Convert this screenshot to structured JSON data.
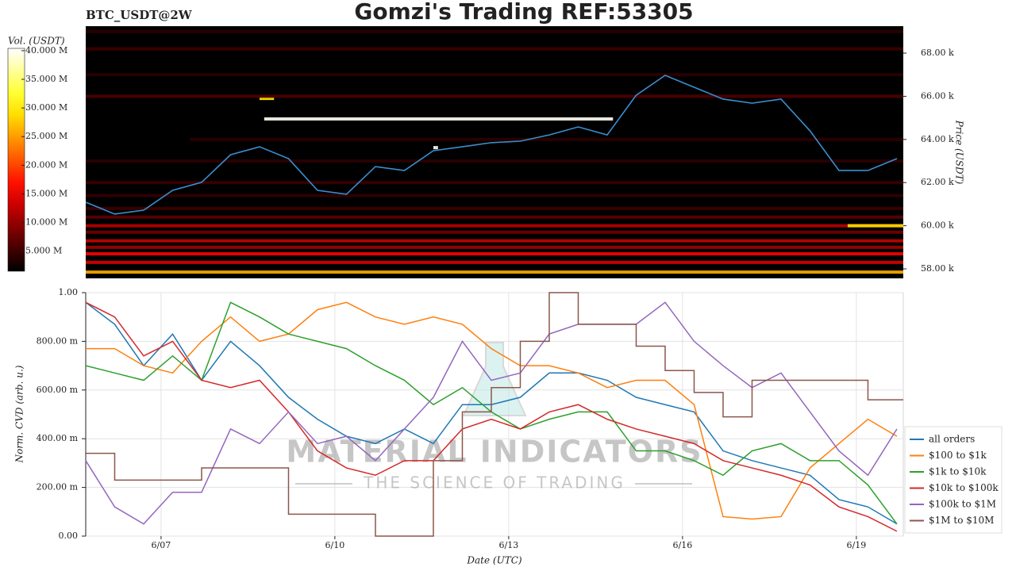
{
  "chart_data": [
    {
      "type": "heatmap",
      "title": "Gomzi's Trading REF:53305",
      "subtitle": "BTC_USDT@2W",
      "ylabel": "Price (USDT)",
      "xlim": [
        5.7,
        19.81
      ],
      "ylim": [
        57560,
        69250
      ],
      "yticks": [
        {
          "value": 58000,
          "label": "58.00 k"
        },
        {
          "value": 60000,
          "label": "60.00 k"
        },
        {
          "value": 62000,
          "label": "62.00 k"
        },
        {
          "value": 64000,
          "label": "64.00 k"
        },
        {
          "value": 66000,
          "label": "66.00 k"
        },
        {
          "value": 68000,
          "label": "68.00 k"
        }
      ],
      "x": [
        5.7,
        6.2,
        6.7,
        7.2,
        7.7,
        8.2,
        8.7,
        9.2,
        9.7,
        10.2,
        10.7,
        11.2,
        11.7,
        12.2,
        12.7,
        13.2,
        13.7,
        14.2,
        14.7,
        15.2,
        15.7,
        16.2,
        16.7,
        17.2,
        17.7,
        18.2,
        18.7,
        19.2,
        19.7
      ],
      "values": [
        61090,
        60540,
        60720,
        61640,
        62010,
        63290,
        63660,
        63110,
        61640,
        61460,
        62740,
        62560,
        63480,
        63660,
        63850,
        63920,
        64210,
        64580,
        64210,
        66050,
        66970,
        66420,
        65870,
        65680,
        65870,
        64400,
        62560,
        62560,
        63110
      ],
      "color": "#3a8fd0",
      "colorbar": {
        "label": "Vol. (USDT)",
        "lim": [
          1500000,
          40400000
        ],
        "ticks": [
          {
            "value": 5000000,
            "label": "5.000 M"
          },
          {
            "value": 10000000,
            "label": "10.000 M"
          },
          {
            "value": 15000000,
            "label": "15.000 M"
          },
          {
            "value": 20000000,
            "label": "20.000 M"
          },
          {
            "value": 25000000,
            "label": "25.000 M"
          },
          {
            "value": 30000000,
            "label": "30.000 M"
          },
          {
            "value": 35000000,
            "label": "35.000 M"
          },
          {
            "value": 40000000,
            "label": "40.000 M"
          }
        ]
      },
      "bands": [
        {
          "price": 57850,
          "volume": 26000000,
          "x": [
            5.7,
            19.81
          ]
        },
        {
          "price": 58300,
          "volume": 14000000,
          "x": [
            5.7,
            19.81
          ]
        },
        {
          "price": 58700,
          "volume": 16000000,
          "x": [
            5.7,
            19.81
          ]
        },
        {
          "price": 59000,
          "volume": 11000000,
          "x": [
            5.7,
            19.81
          ]
        },
        {
          "price": 59300,
          "volume": 13000000,
          "x": [
            5.7,
            19.81
          ]
        },
        {
          "price": 59700,
          "volume": 8000000,
          "x": [
            5.7,
            19.81
          ]
        },
        {
          "price": 60000,
          "volume": 12000000,
          "x": [
            5.7,
            19.81
          ]
        },
        {
          "price": 60000,
          "volume": 29000000,
          "x": [
            18.85,
            19.81
          ]
        },
        {
          "price": 60400,
          "volume": 7000000,
          "x": [
            5.7,
            19.81
          ]
        },
        {
          "price": 60800,
          "volume": 5000000,
          "x": [
            5.7,
            19.81
          ]
        },
        {
          "price": 61400,
          "volume": 4500000,
          "x": [
            5.7,
            19.81
          ]
        },
        {
          "price": 62000,
          "volume": 5000000,
          "x": [
            5.7,
            19.81
          ]
        },
        {
          "price": 63000,
          "volume": 4000000,
          "x": [
            5.7,
            19.81
          ]
        },
        {
          "price": 64000,
          "volume": 4000000,
          "x": [
            7.5,
            19.81
          ]
        },
        {
          "price": 64950,
          "volume": 40000000,
          "x": [
            8.78,
            14.8
          ]
        },
        {
          "price": 65900,
          "volume": 30000000,
          "x": [
            8.7,
            8.95
          ]
        },
        {
          "price": 63620,
          "volume": 40000000,
          "x": [
            11.7,
            11.78
          ]
        },
        {
          "price": 66000,
          "volume": 6000000,
          "x": [
            5.7,
            19.81
          ]
        },
        {
          "price": 67000,
          "volume": 4000000,
          "x": [
            5.7,
            19.81
          ]
        },
        {
          "price": 68200,
          "volume": 5000000,
          "x": [
            5.7,
            19.81
          ]
        },
        {
          "price": 69000,
          "volume": 4000000,
          "x": [
            5.7,
            19.81
          ]
        }
      ]
    },
    {
      "type": "line",
      "xlabel": "Date (UTC)",
      "ylabel": "Norm. CVD (arb. u.)",
      "grid": true,
      "legend": "lower right",
      "watermark": [
        "MATERIAL INDICATORS",
        "THE SCIENCE OF TRADING"
      ],
      "xlim": [
        5.7,
        19.81
      ],
      "xticks": [
        {
          "value": 7,
          "label": "6/07"
        },
        {
          "value": 10,
          "label": "6/10"
        },
        {
          "value": 13,
          "label": "6/13"
        },
        {
          "value": 16,
          "label": "6/16"
        },
        {
          "value": 19,
          "label": "6/19"
        }
      ],
      "ylim": [
        0,
        1
      ],
      "yticks": [
        {
          "value": 0,
          "label": "0.00"
        },
        {
          "value": 0.2,
          "label": "200.00 m"
        },
        {
          "value": 0.4,
          "label": "400.00 m"
        },
        {
          "value": 0.6,
          "label": "600.00 m"
        },
        {
          "value": 0.8,
          "label": "800.00 m"
        },
        {
          "value": 1,
          "label": "1.00"
        }
      ],
      "x": [
        5.7,
        6.2,
        6.7,
        7.2,
        7.7,
        8.2,
        8.7,
        9.2,
        9.7,
        10.2,
        10.7,
        11.2,
        11.7,
        12.2,
        12.7,
        13.2,
        13.7,
        14.2,
        14.7,
        15.2,
        15.7,
        16.2,
        16.7,
        17.2,
        17.7,
        18.2,
        18.7,
        19.2,
        19.7
      ],
      "series": [
        {
          "name": "all orders",
          "color": "#1f77b4",
          "values": [
            0.96,
            0.87,
            0.7,
            0.83,
            0.64,
            0.8,
            0.7,
            0.57,
            0.48,
            0.41,
            0.38,
            0.44,
            0.38,
            0.54,
            0.54,
            0.57,
            0.67,
            0.67,
            0.64,
            0.57,
            0.54,
            0.51,
            0.35,
            0.31,
            0.28,
            0.25,
            0.15,
            0.12,
            0.05
          ]
        },
        {
          "name": "$100 to $1k",
          "color": "#ff7f0e",
          "values": [
            0.77,
            0.77,
            0.7,
            0.67,
            0.8,
            0.9,
            0.8,
            0.83,
            0.93,
            0.96,
            0.9,
            0.87,
            0.9,
            0.87,
            0.77,
            0.7,
            0.7,
            0.67,
            0.61,
            0.64,
            0.64,
            0.54,
            0.08,
            0.07,
            0.08,
            0.28,
            0.38,
            0.48,
            0.41
          ]
        },
        {
          "name": "$1k to $10k",
          "color": "#2ca02c",
          "values": [
            0.7,
            0.67,
            0.64,
            0.74,
            0.64,
            0.96,
            0.9,
            0.83,
            0.8,
            0.77,
            0.7,
            0.64,
            0.54,
            0.61,
            0.51,
            0.44,
            0.48,
            0.51,
            0.51,
            0.35,
            0.35,
            0.31,
            0.25,
            0.35,
            0.38,
            0.31,
            0.31,
            0.21,
            0.05
          ]
        },
        {
          "name": "$10k to $100k",
          "color": "#d62728",
          "values": [
            0.96,
            0.9,
            0.74,
            0.8,
            0.64,
            0.61,
            0.64,
            0.51,
            0.35,
            0.28,
            0.25,
            0.31,
            0.31,
            0.44,
            0.48,
            0.44,
            0.51,
            0.54,
            0.48,
            0.44,
            0.41,
            0.38,
            0.31,
            0.28,
            0.25,
            0.21,
            0.12,
            0.08,
            0.02
          ]
        },
        {
          "name": "$100k to $1M",
          "color": "#9467bd",
          "values": [
            0.31,
            0.12,
            0.05,
            0.18,
            0.18,
            0.44,
            0.38,
            0.51,
            0.38,
            0.41,
            0.31,
            0.44,
            0.57,
            0.8,
            0.64,
            0.67,
            0.83,
            0.87,
            0.87,
            0.87,
            0.96,
            0.8,
            0.7,
            0.61,
            0.67,
            0.51,
            0.35,
            0.25,
            0.44
          ]
        },
        {
          "name": "$1M to $10M",
          "color": "#8c564b",
          "drawstyle": "steps-post",
          "values": [
            0.34,
            0.23,
            0.23,
            0.23,
            0.28,
            0.28,
            0.28,
            0.09,
            0.09,
            0.09,
            0,
            0,
            0.31,
            0.51,
            0.61,
            0.8,
            1.0,
            0.87,
            0.87,
            0.78,
            0.68,
            0.59,
            0.49,
            0.64,
            0.64,
            0.64,
            0.64,
            0.56,
            0.56
          ]
        }
      ]
    }
  ]
}
